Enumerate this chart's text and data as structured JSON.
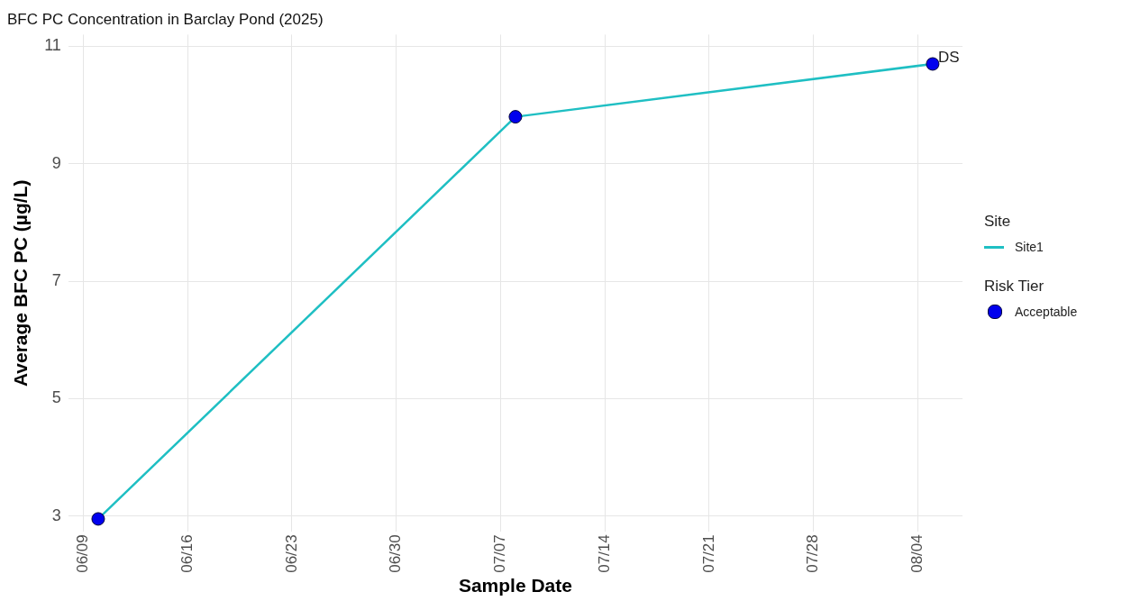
{
  "chart_data": {
    "type": "line",
    "title": "BFC PC Concentration in Barclay Pond (2025)",
    "xlabel": "Sample Date",
    "ylabel": "Average BFC PC (µg/L)",
    "legend_title": [
      "Site",
      "Risk Tier"
    ],
    "x": [
      "2025-06-10",
      "2025-07-08",
      "2025-08-05"
    ],
    "series": [
      {
        "name": "Site1",
        "color": "#1fbfc3",
        "marker": "none",
        "values": [
          2.95,
          9.8,
          10.7
        ]
      },
      {
        "name": "Acceptable",
        "type": "scatter",
        "color": "#0000ee",
        "marker": "circle",
        "values": [
          2.95,
          9.8,
          10.7
        ]
      }
    ],
    "annotations": [
      {
        "text": "DS",
        "x": "2025-08-05",
        "y": 10.7
      }
    ],
    "xlim": [
      "2025-06-08",
      "2025-08-07"
    ],
    "xticks": [
      {
        "value": "2025-06-09",
        "label": "06/09"
      },
      {
        "value": "2025-06-16",
        "label": "06/16"
      },
      {
        "value": "2025-06-23",
        "label": "06/23"
      },
      {
        "value": "2025-06-30",
        "label": "06/30"
      },
      {
        "value": "2025-07-07",
        "label": "07/07"
      },
      {
        "value": "2025-07-14",
        "label": "07/14"
      },
      {
        "value": "2025-07-21",
        "label": "07/21"
      },
      {
        "value": "2025-07-28",
        "label": "07/28"
      },
      {
        "value": "2025-08-04",
        "label": "08/04"
      }
    ],
    "ylim": [
      2.73,
      11.2
    ],
    "yticks": [
      3,
      5,
      7,
      9,
      11
    ],
    "grid": true,
    "legend": "right"
  }
}
